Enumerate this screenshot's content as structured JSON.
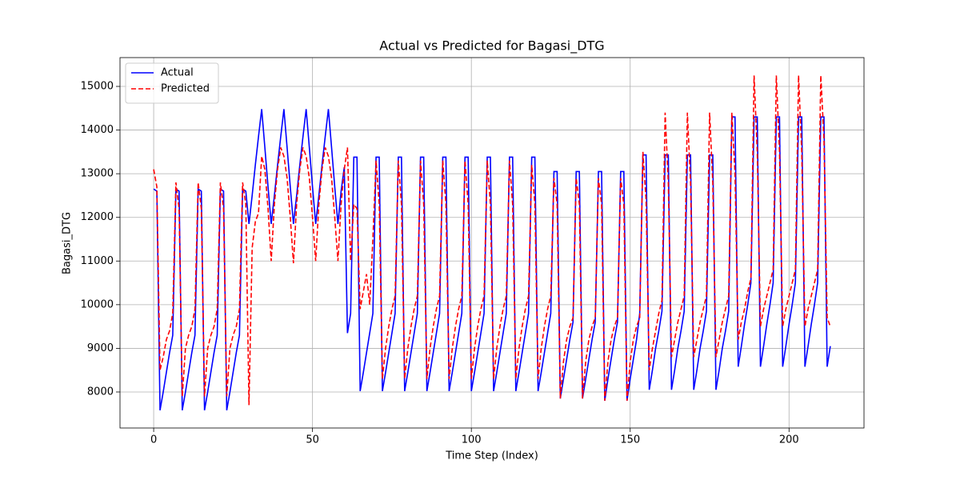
{
  "chart_data": {
    "type": "line",
    "title": "Actual vs Predicted for Bagasi_DTG",
    "x_label": "Time Step (Index)",
    "y_label": "Bagasi_DTG",
    "x": [
      0,
      1,
      2,
      3,
      4,
      5,
      6,
      7,
      8,
      9,
      10,
      11,
      12,
      13,
      14,
      15,
      16,
      17,
      18,
      19,
      20,
      21,
      22,
      23,
      24,
      25,
      26,
      27,
      28,
      29,
      30,
      31,
      32,
      33,
      34,
      35,
      36,
      37,
      38,
      39,
      40,
      41,
      42,
      43,
      44,
      45,
      46,
      47,
      48,
      49,
      50,
      51,
      52,
      53,
      54,
      55,
      56,
      57,
      58,
      59,
      60,
      61,
      62,
      63,
      64,
      65,
      66,
      67,
      68,
      69,
      70,
      71,
      72,
      73,
      74,
      75,
      76,
      77,
      78,
      79,
      80,
      81,
      82,
      83,
      84,
      85,
      86,
      87,
      88,
      89,
      90,
      91,
      92,
      93,
      94,
      95,
      96,
      97,
      98,
      99,
      100,
      101,
      102,
      103,
      104,
      105,
      106,
      107,
      108,
      109,
      110,
      111,
      112,
      113,
      114,
      115,
      116,
      117,
      118,
      119,
      120,
      121,
      122,
      123,
      124,
      125,
      126,
      127,
      128,
      129,
      130,
      131,
      132,
      133,
      134,
      135,
      136,
      137,
      138,
      139,
      140,
      141,
      142,
      143,
      144,
      145,
      146,
      147,
      148,
      149,
      150,
      151,
      152,
      153,
      154,
      155,
      156,
      157,
      158,
      159,
      160,
      161,
      162,
      163,
      164,
      165,
      166,
      167,
      168,
      169,
      170,
      171,
      172,
      173,
      174,
      175,
      176,
      177,
      178,
      179,
      180,
      181,
      182,
      183,
      184,
      185,
      186,
      187,
      188,
      189,
      190,
      191,
      192,
      193,
      194,
      195,
      196,
      197,
      198,
      199,
      200,
      201,
      202,
      203,
      204,
      205,
      206,
      207,
      208,
      209,
      210,
      211,
      212,
      213
    ],
    "series": [
      {
        "name": "Actual",
        "color": "#0000ff",
        "dash": "solid",
        "values": [
          12650,
          12600,
          7580,
          8000,
          8450,
          8900,
          9300,
          12650,
          12600,
          7580,
          8000,
          8450,
          8900,
          9300,
          12650,
          12600,
          7580,
          8000,
          8450,
          8900,
          9300,
          12650,
          12600,
          7580,
          8000,
          8450,
          8900,
          9300,
          12650,
          12600,
          11850,
          12500,
          13200,
          13850,
          14480,
          13600,
          12700,
          11850,
          12500,
          13200,
          13850,
          14480,
          13600,
          12700,
          11850,
          12500,
          13200,
          13850,
          14480,
          13600,
          12700,
          11850,
          12500,
          13200,
          13850,
          14480,
          13600,
          12700,
          11850,
          12600,
          13150,
          9350,
          9800,
          13380,
          13380,
          8020,
          8450,
          8900,
          9350,
          9800,
          13380,
          13380,
          8020,
          8450,
          8900,
          9350,
          9800,
          13380,
          13380,
          8020,
          8450,
          8900,
          9350,
          9800,
          13380,
          13380,
          8020,
          8450,
          8900,
          9350,
          9800,
          13380,
          13380,
          8020,
          8450,
          8900,
          9350,
          9800,
          13380,
          13380,
          8020,
          8450,
          8900,
          9350,
          9800,
          13380,
          13380,
          8020,
          8450,
          8900,
          9350,
          9800,
          13380,
          13380,
          8020,
          8450,
          8900,
          9350,
          9800,
          13380,
          13380,
          8020,
          8450,
          8900,
          9350,
          9800,
          13050,
          13050,
          7850,
          8300,
          8750,
          9200,
          9600,
          13050,
          13050,
          7850,
          8300,
          8750,
          9200,
          9600,
          13050,
          13050,
          7800,
          8300,
          8750,
          9200,
          9600,
          13050,
          13050,
          7800,
          8300,
          8750,
          9200,
          9800,
          13430,
          13430,
          8050,
          8500,
          9000,
          9400,
          9850,
          13430,
          13430,
          8050,
          8500,
          9000,
          9400,
          9850,
          13430,
          13430,
          8050,
          8500,
          9000,
          9400,
          9850,
          13430,
          13430,
          8050,
          8500,
          9000,
          9400,
          9850,
          14300,
          14300,
          8580,
          9050,
          9550,
          10000,
          10500,
          14300,
          14300,
          8580,
          9050,
          9550,
          10000,
          10500,
          14300,
          14300,
          8580,
          9050,
          9550,
          10000,
          10500,
          14300,
          14300,
          8580,
          9050,
          9550,
          10000,
          10500,
          14300,
          14300,
          8580,
          9050
        ]
      },
      {
        "name": "Predicted",
        "color": "#ff0000",
        "dash": "dashed",
        "values": [
          13100,
          12700,
          8500,
          8800,
          9200,
          9400,
          9800,
          12800,
          12200,
          7900,
          9000,
          9300,
          9500,
          9900,
          12800,
          12200,
          7900,
          9000,
          9300,
          9500,
          9900,
          12800,
          12200,
          7900,
          9000,
          9300,
          9500,
          9900,
          12800,
          12300,
          7700,
          11300,
          11900,
          12100,
          13400,
          13100,
          12200,
          11000,
          12300,
          13100,
          13600,
          13400,
          12900,
          12000,
          10950,
          12300,
          13100,
          13600,
          13400,
          12900,
          12000,
          11000,
          12300,
          13100,
          13600,
          13400,
          12900,
          12000,
          11000,
          12300,
          13100,
          13600,
          11000,
          12300,
          12200,
          9900,
          10300,
          10700,
          10000,
          11500,
          13300,
          12300,
          8300,
          9000,
          9500,
          9900,
          10200,
          13300,
          12300,
          8300,
          9000,
          9500,
          9900,
          10200,
          13300,
          12300,
          8300,
          9000,
          9500,
          9900,
          10200,
          13300,
          12300,
          8300,
          9000,
          9500,
          9900,
          10200,
          13300,
          12300,
          8300,
          9000,
          9500,
          9900,
          10200,
          13300,
          12300,
          8300,
          9000,
          9500,
          9900,
          10200,
          13300,
          12300,
          8300,
          9000,
          9500,
          9900,
          10200,
          13200,
          12300,
          8300,
          9000,
          9500,
          9900,
          10200,
          12900,
          12300,
          7850,
          8700,
          9200,
          9500,
          9700,
          12900,
          12300,
          7850,
          8700,
          9200,
          9500,
          9700,
          12900,
          12300,
          7800,
          8700,
          9200,
          9500,
          9700,
          12900,
          12300,
          7800,
          8700,
          9200,
          9500,
          9700,
          13500,
          12400,
          8500,
          9000,
          9400,
          9800,
          10100,
          14400,
          12800,
          8800,
          9200,
          9600,
          9900,
          10200,
          14400,
          12800,
          8800,
          9200,
          9600,
          9900,
          10200,
          14400,
          12800,
          8800,
          9200,
          9600,
          9900,
          10200,
          14400,
          13000,
          9200,
          9600,
          9900,
          10300,
          10600,
          15250,
          13500,
          9500,
          9900,
          10200,
          10500,
          10800,
          15250,
          13500,
          9500,
          9900,
          10200,
          10500,
          10800,
          15250,
          13500,
          9500,
          9900,
          10200,
          10500,
          10800,
          15250,
          13800,
          9700,
          9500
        ]
      }
    ],
    "xlim": [
      -10.6,
      223.6
    ],
    "ylim": [
      7175,
      15660
    ],
    "xticks": [
      0,
      50,
      100,
      150,
      200
    ],
    "yticks": [
      8000,
      9000,
      10000,
      11000,
      12000,
      13000,
      14000,
      15000
    ],
    "grid": true,
    "legend": "upper-left"
  }
}
